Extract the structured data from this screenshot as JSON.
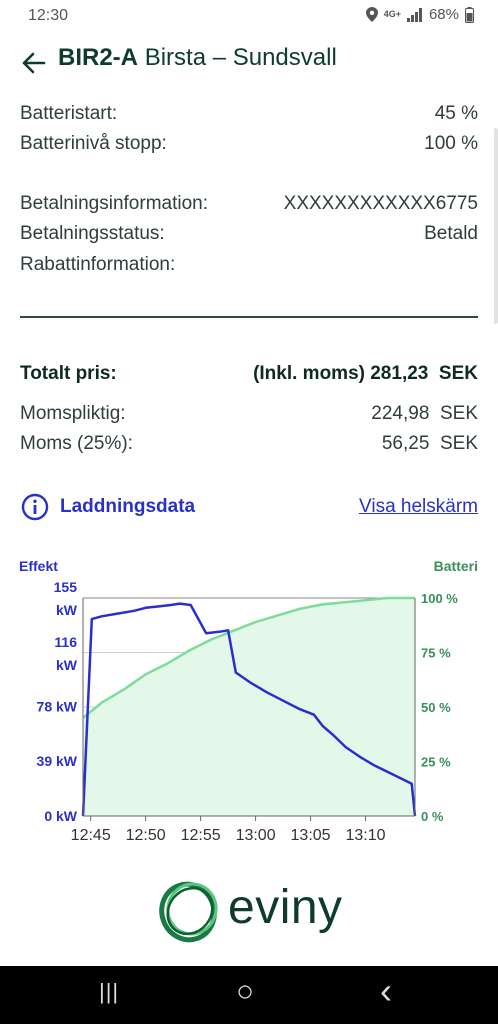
{
  "status_bar": {
    "time": "12:30",
    "network": "4G+",
    "battery": "68%"
  },
  "header": {
    "station_code": "BIR2-A",
    "station_name": "Birsta – Sundsvall"
  },
  "info": {
    "battery_start_label": "Batteristart:",
    "battery_start_value": "45 %",
    "battery_stop_label": "Batterinivå stopp:",
    "battery_stop_value": "100 %",
    "payment_info_label": "Betalningsinformation:",
    "payment_info_value": "XXXXXXXXXXXX6775",
    "payment_status_label": "Betalningsstatus:",
    "payment_status_value": "Betald",
    "discount_label": "Rabattinformation:"
  },
  "price": {
    "total_label": "Totalt pris:",
    "total_value": "(Inkl. moms) 281,23",
    "total_currency": "SEK",
    "taxable_label": "Momspliktig:",
    "taxable_value": "224,98",
    "taxable_currency": "SEK",
    "vat_label": "Moms (25%):",
    "vat_value": "56,25",
    "vat_currency": "SEK"
  },
  "charging_data": {
    "title": "Laddningsdata",
    "fullscreen_link": "Visa helskärm"
  },
  "colors": {
    "power": "#2a2ed0",
    "battery": "#7edc9a",
    "battery_fill": "#e3f8e8",
    "brand": "#0e3b2e"
  },
  "chart_data": {
    "type": "line",
    "left_axis_title": "Effekt",
    "right_axis_title": "Batteri",
    "left_ticks": [
      {
        "value": 155,
        "label1": "155",
        "label2": "kW"
      },
      {
        "value": 116,
        "label1": "116",
        "label2": "kW"
      },
      {
        "value": 78,
        "label1": "78 kW",
        "label2": ""
      },
      {
        "value": 39,
        "label1": "39 kW",
        "label2": ""
      },
      {
        "value": 0,
        "label1": "0 kW",
        "label2": ""
      }
    ],
    "right_ticks": [
      {
        "value": 100,
        "label": "100 %"
      },
      {
        "value": 75,
        "label": "75 %"
      },
      {
        "value": 50,
        "label": "50 %"
      },
      {
        "value": 25,
        "label": "25 %"
      },
      {
        "value": 0,
        "label": "0 %"
      }
    ],
    "x_ticks": [
      {
        "value": 45,
        "label": "12:45"
      },
      {
        "value": 50,
        "label": "12:50"
      },
      {
        "value": 55,
        "label": "12:55"
      },
      {
        "value": 60,
        "label": "13:00"
      },
      {
        "value": 65,
        "label": "13:05"
      },
      {
        "value": 70,
        "label": "13:10"
      }
    ],
    "x_range": [
      44.3,
      74.5
    ],
    "y_left_range": [
      0,
      155
    ],
    "y_right_range": [
      0,
      100
    ],
    "power_series": {
      "x": [
        44.3,
        45.1,
        46,
        47.5,
        49,
        50,
        51.2,
        52.3,
        53.1,
        54.1,
        55.5,
        56.7,
        57.5,
        58.2,
        59.5,
        61,
        62.5,
        64,
        65.3,
        66.1,
        67,
        68.2,
        69.5,
        70.8,
        72.1,
        73.4,
        74.2,
        74.5
      ],
      "y": [
        0,
        140,
        142,
        144,
        146,
        148,
        149,
        150,
        151,
        150,
        130,
        131,
        132,
        102,
        95,
        88,
        82,
        76,
        72,
        64,
        58,
        49,
        42,
        36,
        31,
        26,
        23,
        0
      ]
    },
    "battery_series": {
      "x": [
        44.3,
        46,
        48,
        50,
        52,
        54,
        56,
        58,
        60,
        62,
        64,
        66,
        68,
        70,
        72,
        74.5
      ],
      "y": [
        45,
        52,
        58,
        65,
        70,
        76,
        81,
        85,
        89,
        92,
        95,
        97,
        98,
        99,
        100,
        100
      ]
    }
  },
  "brand": {
    "name": "eviny"
  },
  "navbar": {
    "recent": "|||",
    "home": "○",
    "back": "‹"
  }
}
